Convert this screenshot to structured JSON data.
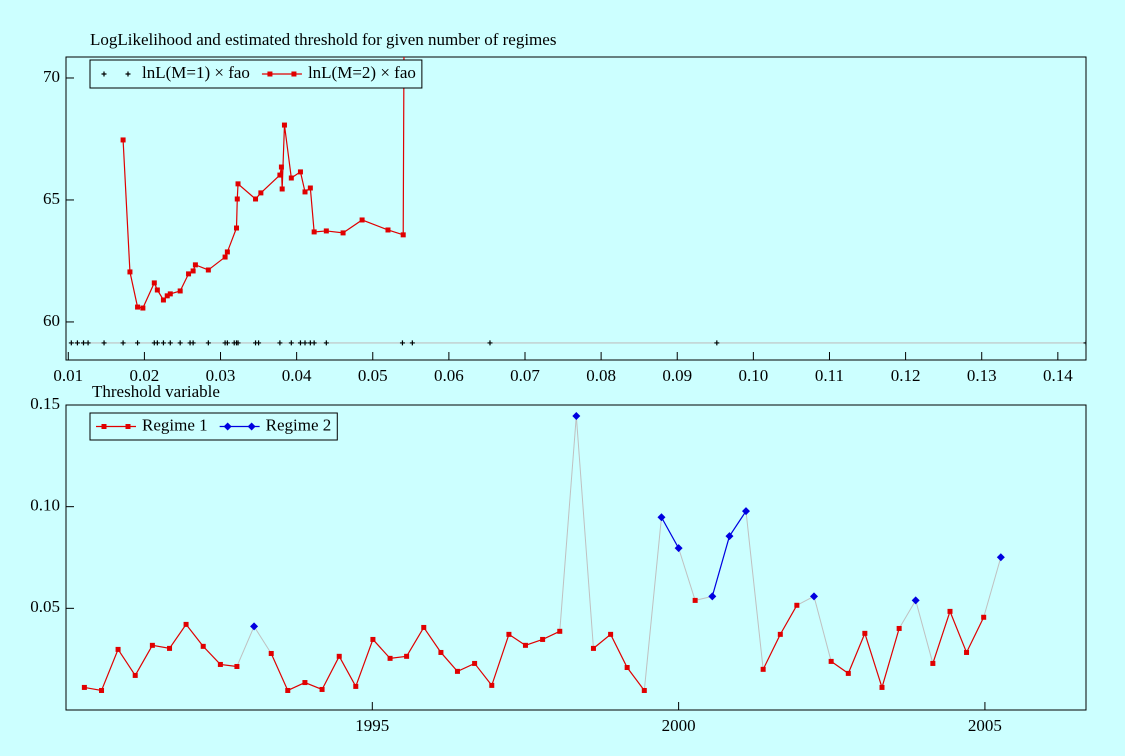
{
  "chart_data": [
    {
      "type": "line",
      "title": "LogLikelihood and estimated threshold for given number of regimes",
      "xlim": [
        0.0097,
        0.1437
      ],
      "ylim": [
        58.44,
        70.86
      ],
      "xticks": [
        0.01,
        0.02,
        0.03,
        0.04,
        0.05,
        0.06,
        0.07,
        0.08,
        0.09,
        {
          "value": 0.1,
          "label": "0.10"
        },
        0.11,
        0.12,
        0.13,
        0.14
      ],
      "yticks": [
        60,
        65,
        70
      ],
      "legend": "upper left",
      "series": [
        {
          "name": "lnL(M=1) × fao",
          "color": "#000000",
          "line_color": "#c0c0c0",
          "marker": "plus",
          "x": [
            0.0104,
            0.0112,
            0.012,
            0.0126,
            0.0147,
            0.0172,
            0.0191,
            0.0213,
            0.0217,
            0.0225,
            0.0234,
            0.0247,
            0.026,
            0.0264,
            0.0284,
            0.0306,
            0.0309,
            0.0318,
            0.0321,
            0.0323,
            0.0346,
            0.035,
            0.0378,
            0.0393,
            0.0405,
            0.0411,
            0.0418,
            0.0423,
            0.0439,
            0.0539,
            0.0552,
            0.0654,
            0.0952,
            0.1437
          ],
          "values": [
            59.14,
            59.14,
            59.14,
            59.14,
            59.14,
            59.14,
            59.14,
            59.14,
            59.14,
            59.14,
            59.14,
            59.14,
            59.14,
            59.14,
            59.14,
            59.14,
            59.14,
            59.14,
            59.14,
            59.14,
            59.14,
            59.14,
            59.14,
            59.14,
            59.14,
            59.14,
            59.14,
            59.14,
            59.14,
            59.14,
            59.14,
            59.14,
            59.14,
            59.14
          ]
        },
        {
          "name": "lnL(M=2) × fao",
          "color": "#e00000",
          "marker": "square",
          "x": [
            0.0172,
            0.0181,
            0.0191,
            0.0198,
            0.0213,
            0.0217,
            0.0225,
            0.023,
            0.0234,
            0.0247,
            0.0258,
            0.0264,
            0.0267,
            0.0284,
            0.0306,
            0.0309,
            0.0321,
            0.0322,
            0.0323,
            0.0346,
            0.0353,
            0.0378,
            0.038,
            0.0381,
            0.0384,
            0.0393,
            0.0405,
            0.0411,
            0.0418,
            0.0423,
            0.0439,
            0.0461,
            0.0486,
            0.052,
            0.054,
            0.0541
          ],
          "values": [
            67.46,
            62.05,
            60.61,
            60.57,
            61.6,
            61.31,
            60.9,
            61.07,
            61.15,
            61.27,
            61.97,
            62.09,
            62.34,
            62.13,
            62.66,
            62.87,
            63.85,
            65.04,
            65.66,
            65.04,
            65.29,
            66.02,
            66.35,
            65.45,
            68.07,
            65.9,
            66.15,
            65.33,
            65.49,
            63.69,
            63.73,
            63.65,
            64.18,
            63.77,
            63.57,
            71.0
          ]
        }
      ]
    },
    {
      "type": "line",
      "title": "Threshold variable",
      "xlim": [
        1990.0,
        2006.65
      ],
      "ylim": [
        0,
        0.15
      ],
      "xticks": [
        1995,
        2000,
        2005
      ],
      "yticks": [
        0.05,
        {
          "value": 0.1,
          "label": "0.10"
        },
        0.15
      ],
      "legend": "upper left",
      "connector_color": "#c0c0c0",
      "x": [
        1990.3,
        1990.58,
        1990.85,
        1991.13,
        1991.41,
        1991.69,
        1991.96,
        1992.24,
        1992.52,
        1992.79,
        1993.07,
        1993.35,
        1993.62,
        1993.9,
        1994.18,
        1994.46,
        1994.73,
        1995.01,
        1995.29,
        1995.56,
        1995.84,
        1996.12,
        1996.39,
        1996.67,
        1996.95,
        1997.23,
        1997.5,
        1997.78,
        1998.06,
        1998.33,
        1998.61,
        1998.89,
        1999.16,
        1999.44,
        1999.72,
        2000.0,
        2000.27,
        2000.55,
        2000.83,
        2001.1,
        2001.38,
        2001.66,
        2001.93,
        2002.21,
        2002.49,
        2002.77,
        2003.04,
        2003.32,
        2003.6,
        2003.87,
        2004.15,
        2004.43,
        2004.7,
        2004.98,
        2005.26
      ],
      "series": [
        {
          "name": "Regime 1",
          "color": "#e00000",
          "marker": "square",
          "values": [
            0.0111,
            0.0096,
            0.0298,
            0.017,
            0.0318,
            0.0303,
            0.0421,
            0.0313,
            0.0224,
            0.0214,
            null,
            0.0278,
            0.0096,
            0.0135,
            0.0101,
            0.0264,
            0.0116,
            0.0347,
            0.0254,
            0.0264,
            0.0406,
            0.0283,
            0.019,
            0.0229,
            0.0121,
            0.0372,
            0.0318,
            0.0347,
            0.0387,
            null,
            0.0303,
            0.0372,
            0.0209,
            0.0096,
            null,
            null,
            0.0539,
            null,
            null,
            null,
            0.02,
            0.0372,
            0.0515,
            null,
            0.0239,
            0.018,
            0.0377,
            0.0111,
            0.0401,
            null,
            0.0229,
            0.0485,
            0.0283,
            0.0456,
            null
          ]
        },
        {
          "name": "Regime 2",
          "color": "#0000e0",
          "marker": "diamond",
          "values": [
            null,
            null,
            null,
            null,
            null,
            null,
            null,
            null,
            null,
            null,
            0.0411,
            null,
            null,
            null,
            null,
            null,
            null,
            null,
            null,
            null,
            null,
            null,
            null,
            null,
            null,
            null,
            null,
            null,
            null,
            0.1446,
            null,
            null,
            null,
            null,
            0.0948,
            0.0796,
            null,
            0.0559,
            0.0855,
            0.0978,
            null,
            null,
            null,
            0.0559,
            null,
            null,
            null,
            null,
            null,
            0.0539,
            null,
            null,
            null,
            null,
            0.0751
          ]
        }
      ]
    }
  ]
}
